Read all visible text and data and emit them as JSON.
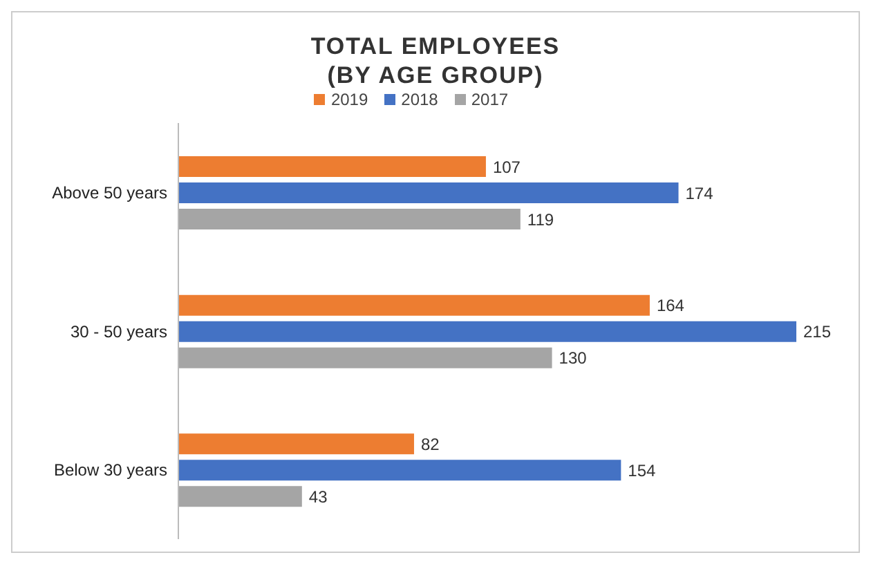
{
  "chart_data": {
    "type": "bar",
    "orientation": "horizontal",
    "title": "TOTAL EMPLOYEES (BY AGE GROUP)",
    "categories": [
      "Above 50 years",
      "30 - 50 years",
      "Below 30 years"
    ],
    "series": [
      {
        "name": "2019",
        "color": "#ed7d31",
        "values": [
          107,
          164,
          82
        ]
      },
      {
        "name": "2018",
        "color": "#4472c4",
        "values": [
          174,
          215,
          154
        ]
      },
      {
        "name": "2017",
        "color": "#a5a5a5",
        "values": [
          119,
          130,
          43
        ]
      }
    ],
    "data_labels": true,
    "legend": "top",
    "grid": false
  }
}
